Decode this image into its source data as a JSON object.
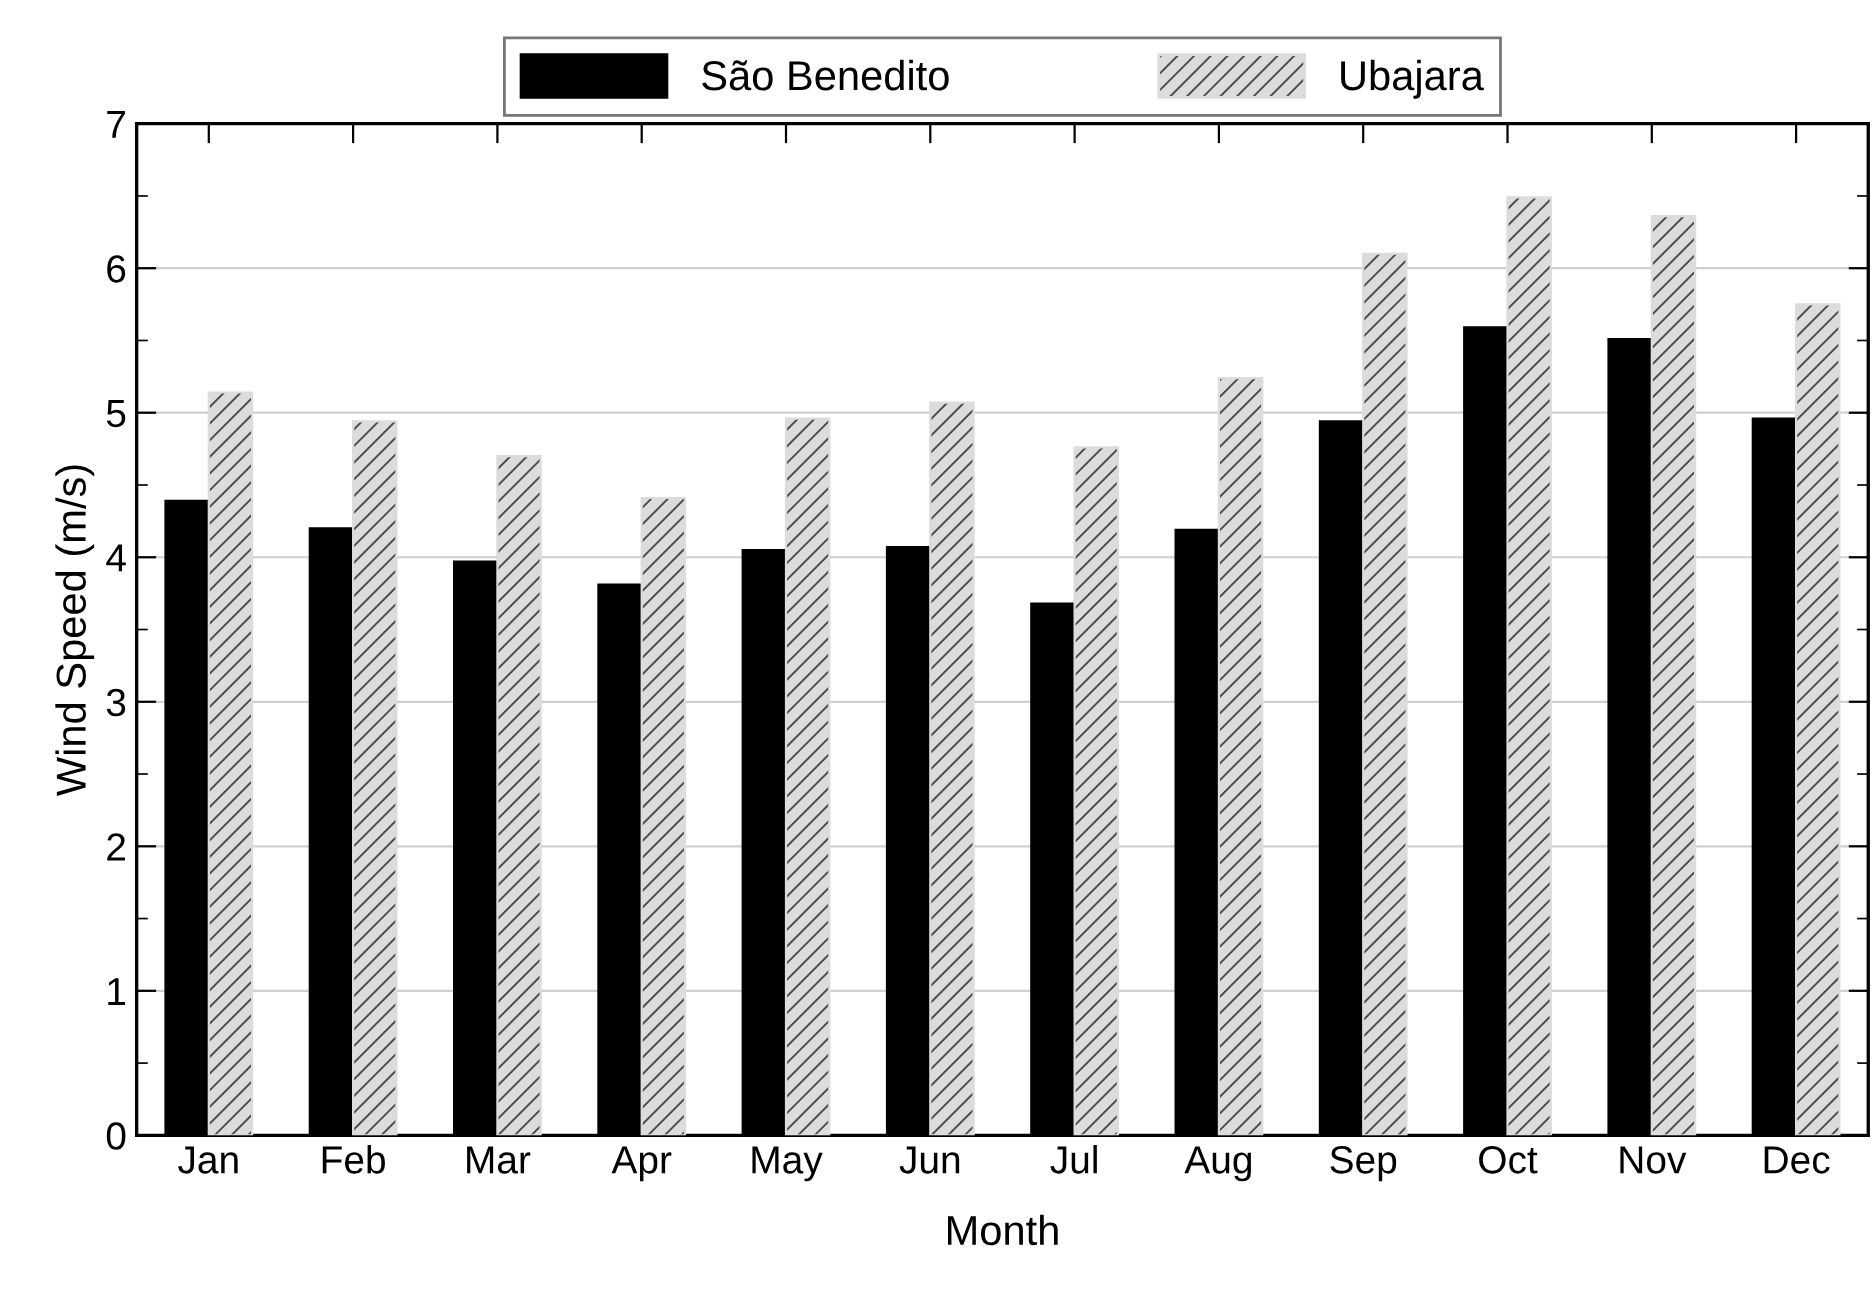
{
  "chart_data": {
    "type": "bar",
    "xlabel": "Month",
    "ylabel": "Wind Speed (m/s)",
    "categories": [
      "Jan",
      "Feb",
      "Mar",
      "Apr",
      "May",
      "Jun",
      "Jul",
      "Aug",
      "Sep",
      "Oct",
      "Nov",
      "Dec"
    ],
    "series": [
      {
        "name": "São Benedito",
        "color": "#000000",
        "values": [
          4.39,
          4.2,
          3.97,
          3.81,
          4.05,
          4.07,
          3.68,
          4.19,
          4.94,
          5.59,
          5.51,
          4.96
        ]
      },
      {
        "name": "Ubajara",
        "color": "#dcdcdc",
        "values": [
          5.14,
          4.94,
          4.7,
          4.41,
          4.96,
          5.07,
          4.76,
          5.24,
          6.1,
          6.49,
          6.36,
          5.75
        ]
      }
    ],
    "ylim": [
      0,
      7
    ],
    "yticks": [
      0,
      1,
      2,
      3,
      4,
      5,
      6,
      7
    ],
    "grid": "y",
    "legend": "top"
  }
}
